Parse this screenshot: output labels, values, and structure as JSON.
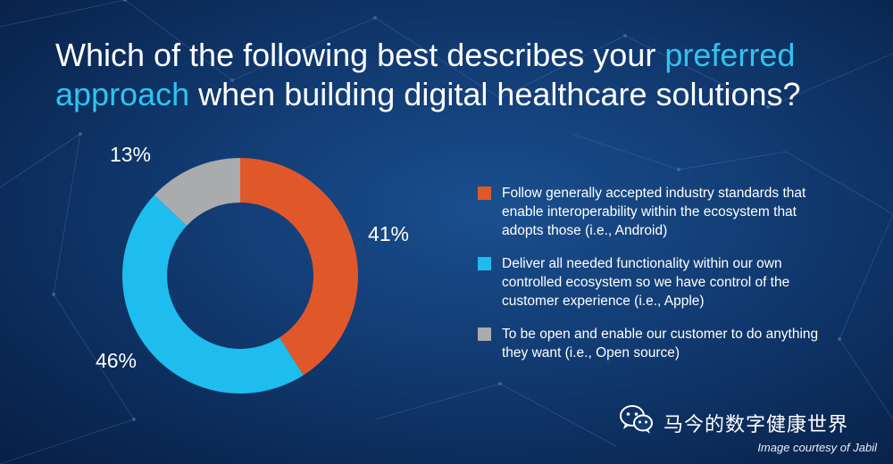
{
  "title": {
    "part1": "Which of the following best describes your ",
    "highlight1": "preferred",
    "highlight2": "approach",
    "part2": " when building digital healthcare solutions?"
  },
  "chart_data": {
    "type": "pie",
    "variant": "donut",
    "title": "Which of the following best describes your preferred approach when building digital healthcare solutions?",
    "slices": [
      {
        "label": "Follow generally accepted industry standards that enable interoperability within the ecosystem that adopts those (i.e., Android)",
        "value": 41,
        "display": "41%",
        "color": "#e0582a"
      },
      {
        "label": "Deliver all needed functionality within our own controlled ecosystem so we have control of the customer experience (i.e., Apple)",
        "value": 46,
        "display": "46%",
        "color": "#1ebdee"
      },
      {
        "label": "To be open and enable our customer to do anything they want (i.e., Open source)",
        "value": 13,
        "display": "13%",
        "color": "#a9abac"
      }
    ],
    "legend_position": "right"
  },
  "footer": {
    "watermark": "马今的数字健康世界",
    "credit": "Image courtesy of Jabil"
  },
  "icons": {
    "watermark_icon": "wechat-icon"
  }
}
